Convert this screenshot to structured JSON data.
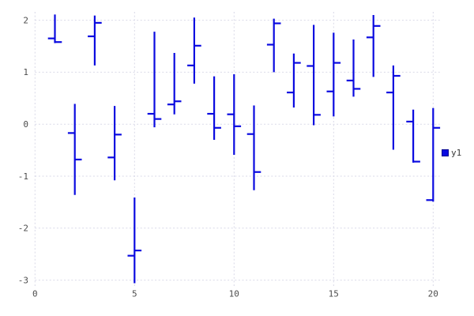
{
  "chart_data": {
    "type": "ohlc",
    "title": "",
    "xlabel": "",
    "ylabel": "",
    "xlim": [
      0,
      20.4
    ],
    "ylim": [
      -3.1,
      2.2
    ],
    "x_ticks": [
      0,
      5,
      10,
      15,
      20
    ],
    "y_ticks": [
      2,
      1,
      0,
      -1,
      -2,
      -3
    ],
    "grid": "dashed",
    "legend_position": "right-center",
    "colors": {
      "series": "#0a0ae0",
      "legend_swatch_border": "#000090",
      "grid": "#d9d9e8",
      "tick_label": "#4d4d4d",
      "background": "#ffffff"
    },
    "series": [
      {
        "name": "y1",
        "color": "#0a0ae0",
        "points": [
          {
            "x": 1,
            "open": 1.65,
            "high": 2.11,
            "low": 1.56,
            "close": 1.58
          },
          {
            "x": 2,
            "open": -0.17,
            "high": 0.39,
            "low": -1.36,
            "close": -0.68
          },
          {
            "x": 3,
            "open": 1.69,
            "high": 2.09,
            "low": 1.13,
            "close": 1.95
          },
          {
            "x": 4,
            "open": -0.64,
            "high": 0.35,
            "low": -1.08,
            "close": -0.2
          },
          {
            "x": 5,
            "open": -2.53,
            "high": -1.41,
            "low": -3.06,
            "close": -2.43
          },
          {
            "x": 6,
            "open": 0.2,
            "high": 1.78,
            "low": -0.06,
            "close": 0.1
          },
          {
            "x": 7,
            "open": 0.38,
            "high": 1.37,
            "low": 0.19,
            "close": 0.44
          },
          {
            "x": 8,
            "open": 1.13,
            "high": 2.05,
            "low": 0.78,
            "close": 1.51
          },
          {
            "x": 9,
            "open": 0.2,
            "high": 0.92,
            "low": -0.3,
            "close": -0.07
          },
          {
            "x": 10,
            "open": 0.19,
            "high": 0.96,
            "low": -0.59,
            "close": -0.04
          },
          {
            "x": 11,
            "open": -0.19,
            "high": 0.36,
            "low": -1.27,
            "close": -0.92
          },
          {
            "x": 12,
            "open": 1.53,
            "high": 2.03,
            "low": 1.0,
            "close": 1.94
          },
          {
            "x": 13,
            "open": 0.61,
            "high": 1.36,
            "low": 0.32,
            "close": 1.18
          },
          {
            "x": 14,
            "open": 1.12,
            "high": 1.91,
            "low": -0.02,
            "close": 0.18
          },
          {
            "x": 15,
            "open": 0.63,
            "high": 1.76,
            "low": 0.15,
            "close": 1.18
          },
          {
            "x": 16,
            "open": 0.84,
            "high": 1.63,
            "low": 0.53,
            "close": 0.68
          },
          {
            "x": 17,
            "open": 1.67,
            "high": 2.1,
            "low": 0.91,
            "close": 1.89
          },
          {
            "x": 18,
            "open": 0.61,
            "high": 1.13,
            "low": -0.49,
            "close": 0.93
          },
          {
            "x": 19,
            "open": 0.05,
            "high": 0.28,
            "low": -0.74,
            "close": -0.72
          },
          {
            "x": 20,
            "open": -1.46,
            "high": 0.31,
            "low": -1.49,
            "close": -0.07
          }
        ]
      }
    ]
  }
}
